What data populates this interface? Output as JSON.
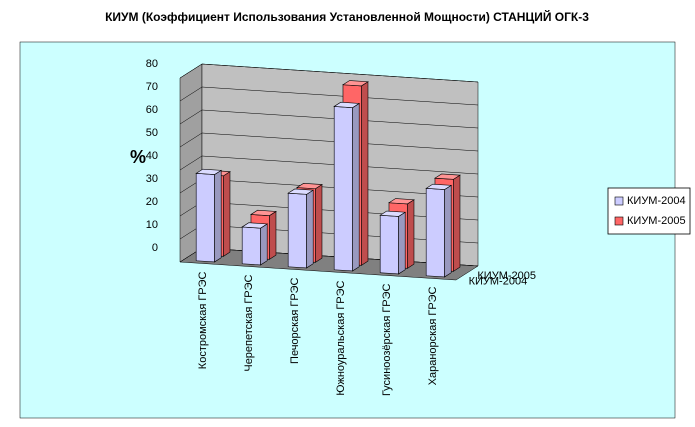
{
  "chart_data": {
    "type": "bar3d",
    "title": "КИУМ (Коэффициент Использования Установленной Мощности) СТАНЦИЙ ОГК-3",
    "y_label": "%",
    "categories": [
      "Костромская ГРЭС",
      "Черепетская ГРЭС",
      "Печорская ГРЭС",
      "Южноуральская ГРЭС",
      "Гусиноозёрская ГРЭС",
      "Харанорская ГРЭС"
    ],
    "series": [
      {
        "name": "КИУМ-2004",
        "color": "#ccccff",
        "values": [
          38,
          16,
          32,
          71,
          25,
          38
        ]
      },
      {
        "name": "КИУМ-2005",
        "color": "#ff6666",
        "values": [
          35,
          19,
          32,
          78,
          28,
          40
        ]
      }
    ],
    "ylim": [
      0,
      80
    ],
    "yticks": [
      0,
      10,
      20,
      30,
      40,
      50,
      60,
      70,
      80
    ],
    "grid": true,
    "legend": "right"
  }
}
